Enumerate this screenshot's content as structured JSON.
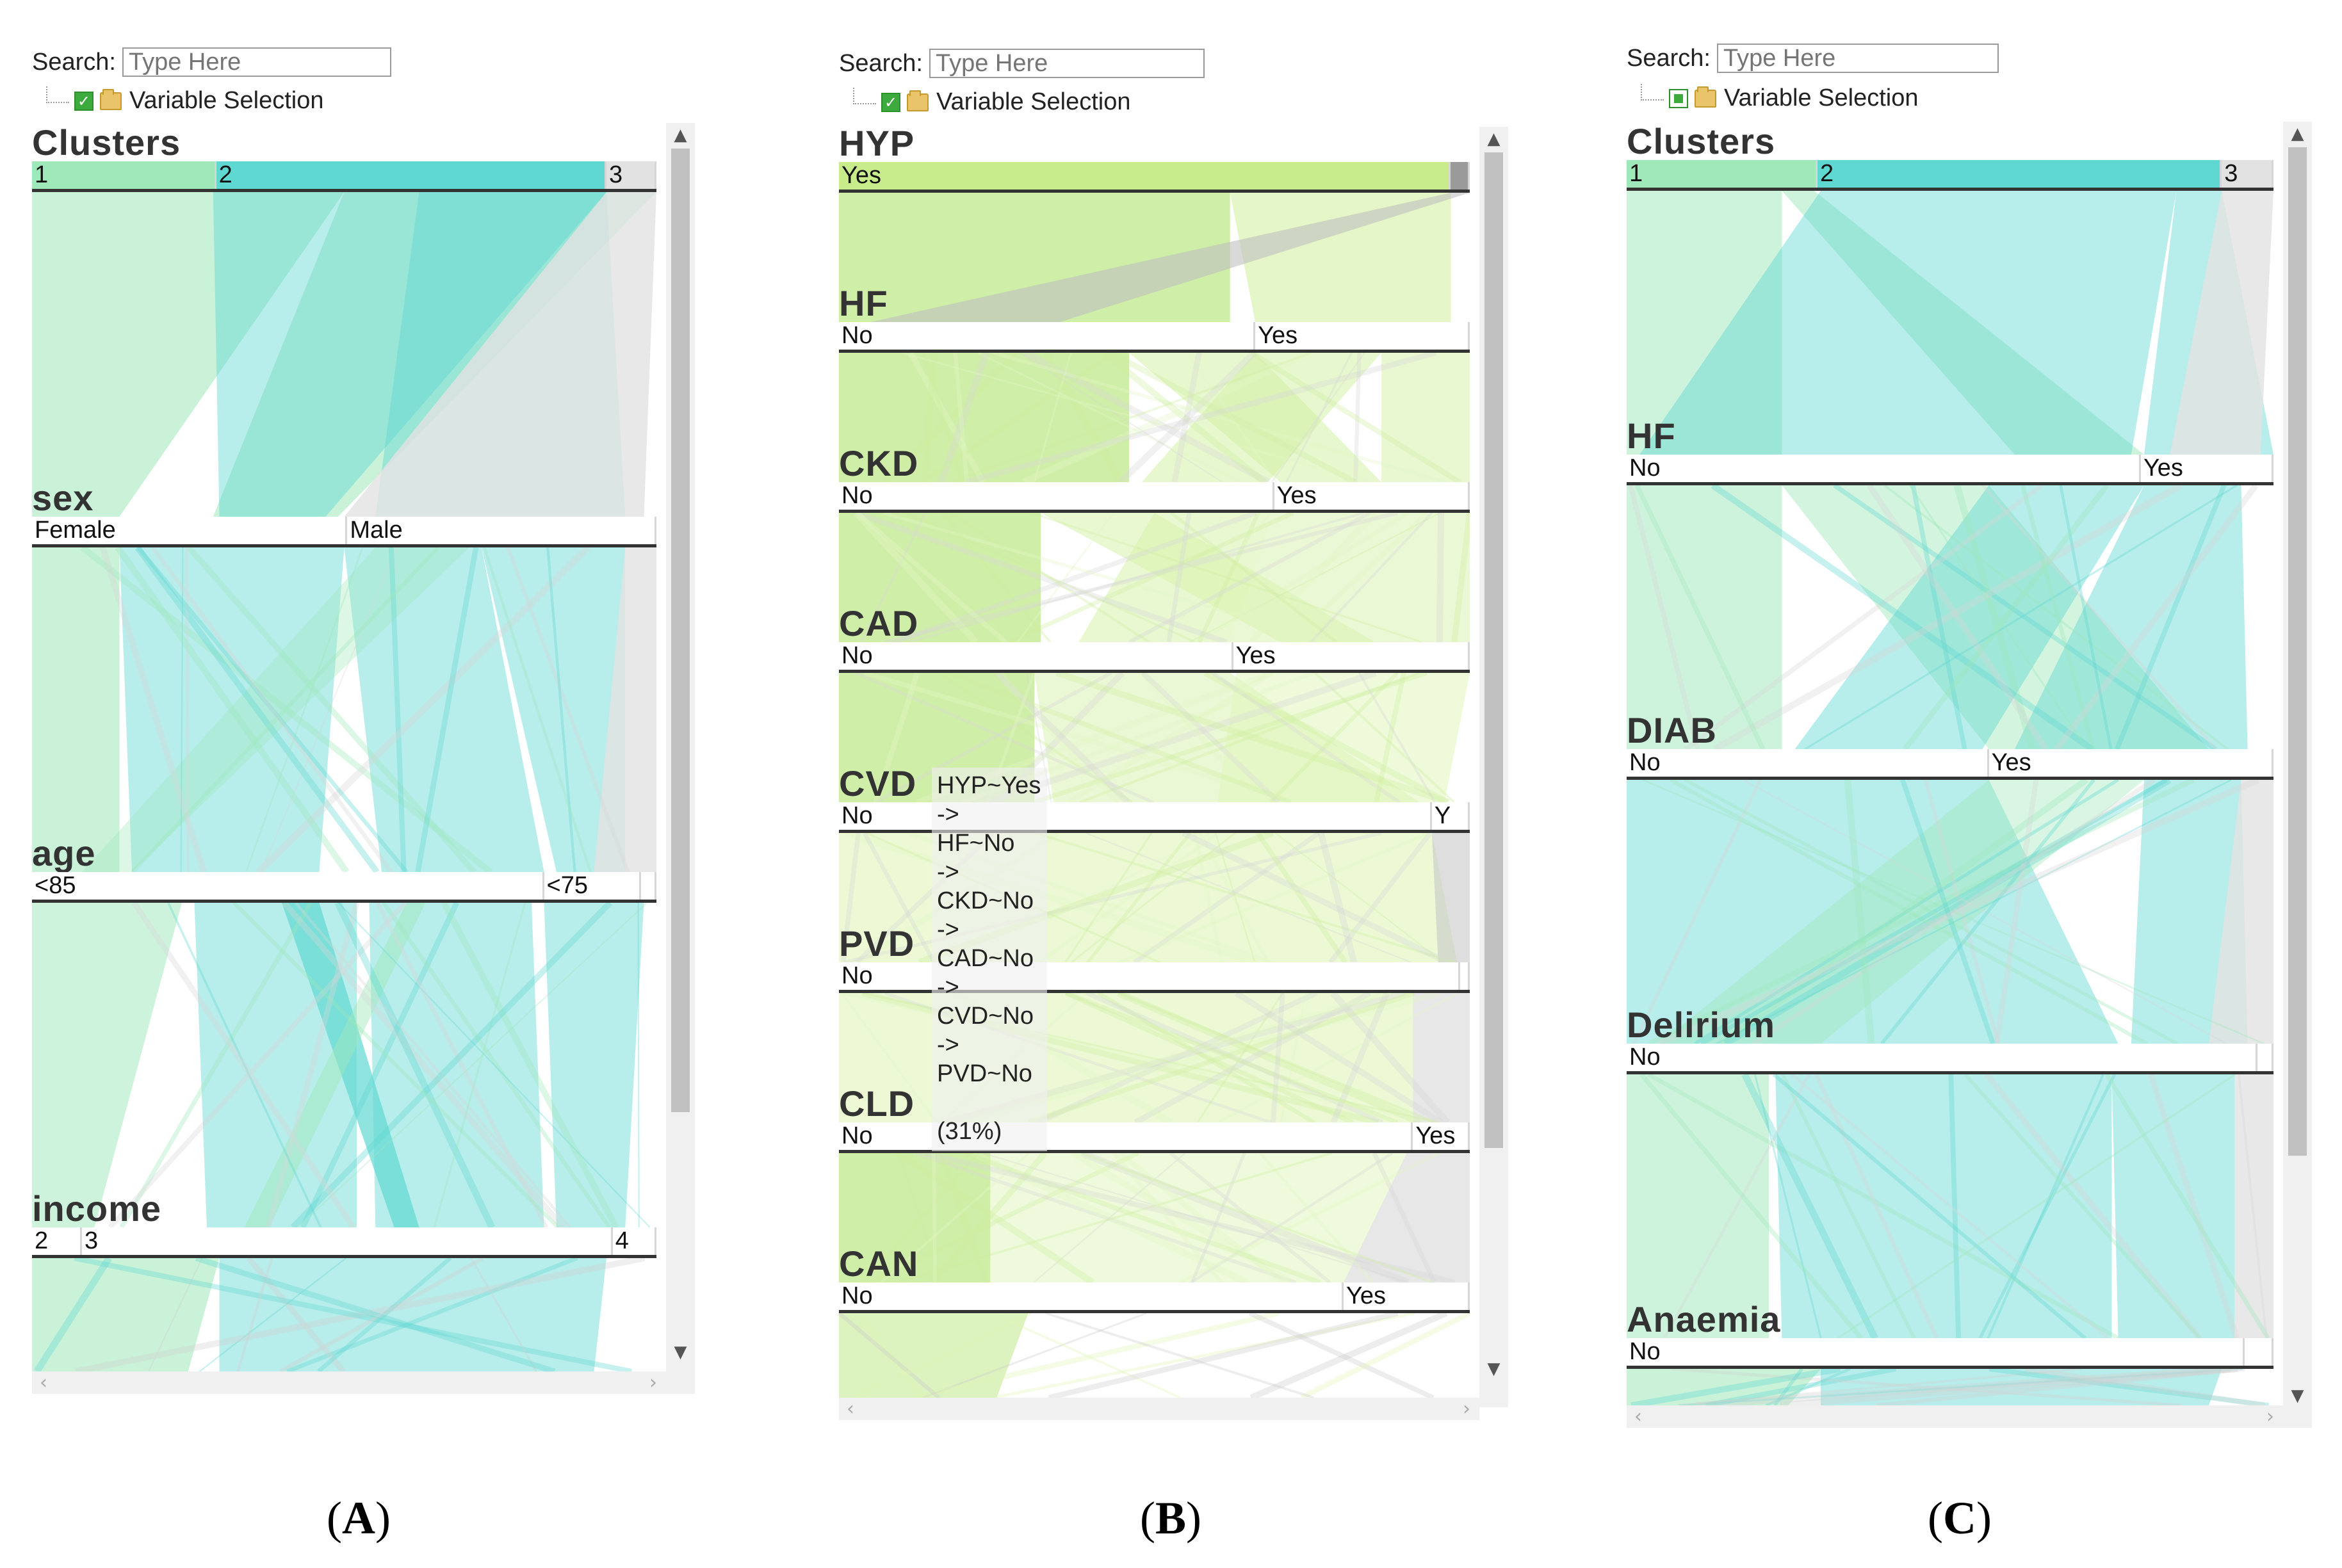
{
  "search": {
    "label": "Search:",
    "placeholder": "Type Here"
  },
  "tree": {
    "label": "Variable Selection"
  },
  "panels": {
    "A": {
      "caption": {
        "open": "(",
        "letter": "A",
        "close": ")"
      },
      "axes": [
        {
          "name": "Clusters",
          "colored": true,
          "cats": [
            {
              "label": "1",
              "w": 0.295
            },
            {
              "label": "2",
              "w": 0.625
            },
            {
              "label": "3",
              "w": 0.08
            }
          ]
        },
        {
          "name": "sex",
          "cats": [
            {
              "label": "Female",
              "w": 0.505
            },
            {
              "label": "Male",
              "w": 0.495
            }
          ]
        },
        {
          "name": "age",
          "cats": [
            {
              "label": "<85",
              "w": 0.82
            },
            {
              "label": "<75",
              "w": 0.155
            },
            {
              "label": "",
              "w": 0.025
            }
          ]
        },
        {
          "name": "income",
          "cats": [
            {
              "label": "2",
              "w": 0.08
            },
            {
              "label": "3",
              "w": 0.85
            },
            {
              "label": "4",
              "w": 0.07
            }
          ]
        }
      ]
    },
    "B": {
      "caption": {
        "open": "(",
        "letter": "B",
        "close": ")"
      },
      "axes": [
        {
          "name": "HYP",
          "cats": [
            {
              "label": "Yes",
              "w": 0.97
            },
            {
              "label": "",
              "w": 0.03
            }
          ]
        },
        {
          "name": "HF",
          "cats": [
            {
              "label": "No",
              "w": 0.66
            },
            {
              "label": "Yes",
              "w": 0.34
            }
          ]
        },
        {
          "name": "CKD",
          "cats": [
            {
              "label": "No",
              "w": 0.69
            },
            {
              "label": "Yes",
              "w": 0.31
            }
          ]
        },
        {
          "name": "CAD",
          "cats": [
            {
              "label": "No",
              "w": 0.625
            },
            {
              "label": "Yes",
              "w": 0.375
            }
          ]
        },
        {
          "name": "CVD",
          "cats": [
            {
              "label": "No",
              "w": 0.94
            },
            {
              "label": "Y",
              "w": 0.06
            }
          ]
        },
        {
          "name": "PVD",
          "cats": [
            {
              "label": "No",
              "w": 0.985
            },
            {
              "label": "",
              "w": 0.015
            }
          ]
        },
        {
          "name": "CLD",
          "cats": [
            {
              "label": "No",
              "w": 0.91
            },
            {
              "label": "Yes",
              "w": 0.09
            }
          ]
        },
        {
          "name": "CAN",
          "cats": [
            {
              "label": "No",
              "w": 0.8
            },
            {
              "label": "Yes",
              "w": 0.2
            }
          ]
        }
      ],
      "tooltip": "HYP~Yes\n->\nHF~No\n->\nCKD~No\n->\nCAD~No\n->\nCVD~No\n->\nPVD~No\n\n(31%)"
    },
    "C": {
      "caption": {
        "open": "(",
        "letter": "C",
        "close": ")"
      },
      "axes": [
        {
          "name": "Clusters",
          "colored": true,
          "cats": [
            {
              "label": "1",
              "w": 0.295
            },
            {
              "label": "2",
              "w": 0.625
            },
            {
              "label": "3",
              "w": 0.08
            }
          ]
        },
        {
          "name": "HF",
          "cats": [
            {
              "label": "No",
              "w": 0.795
            },
            {
              "label": "Yes",
              "w": 0.205
            }
          ]
        },
        {
          "name": "DIAB",
          "cats": [
            {
              "label": "No",
              "w": 0.56
            },
            {
              "label": "Yes",
              "w": 0.44
            }
          ]
        },
        {
          "name": "Delirium",
          "cats": [
            {
              "label": "No",
              "w": 0.975
            },
            {
              "label": "",
              "w": 0.025
            }
          ]
        },
        {
          "name": "Anaemia",
          "cats": [
            {
              "label": "No",
              "w": 0.955
            },
            {
              "label": "",
              "w": 0.045
            }
          ]
        }
      ]
    }
  },
  "colors": {
    "cluster1": "#9ee8b9",
    "cluster2": "#5fd8d2",
    "cluster3": "#e2e2e2",
    "lime": "#c8ec8a"
  }
}
